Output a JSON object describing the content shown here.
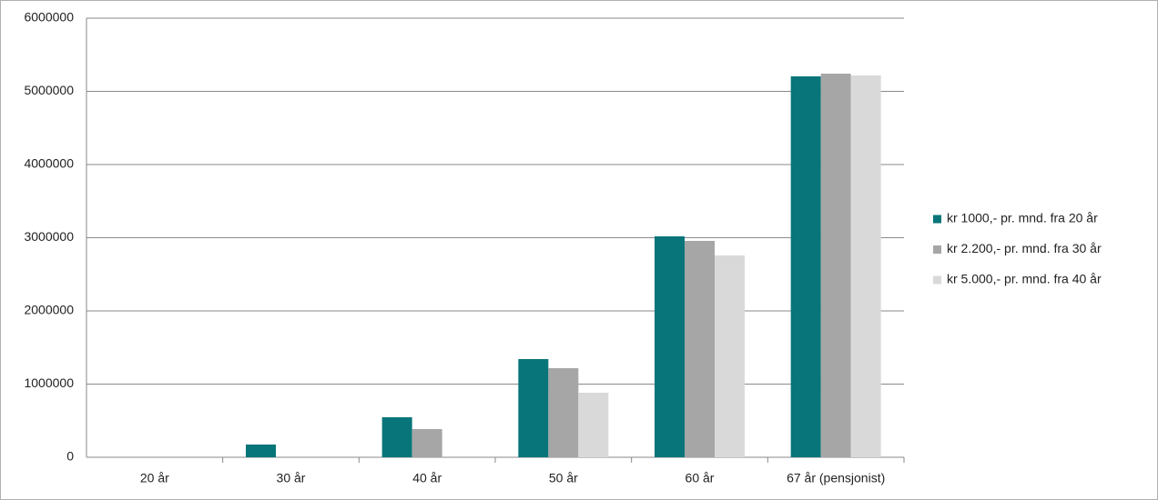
{
  "chart_data": {
    "type": "bar",
    "categories": [
      "20 år",
      "30 år",
      "40 år",
      "50 år",
      "60 år",
      "67 år (pensjonist)"
    ],
    "series": [
      {
        "name": "kr 1000,- pr. mnd. fra 20 år",
        "color": "#077579",
        "values": [
          0,
          174000,
          547000,
          1342000,
          3019000,
          5205000
        ]
      },
      {
        "name": "kr 2.200,- pr. mnd. fra 30 år",
        "color": "#a6a6a6",
        "values": [
          0,
          0,
          385000,
          1217000,
          2957000,
          5242000
        ]
      },
      {
        "name": "kr 5.000,- pr. mnd. fra 40 år",
        "color": "#d9d9d9",
        "values": [
          0,
          0,
          0,
          882000,
          2758000,
          5217000
        ]
      }
    ],
    "ylim": [
      0,
      6000000
    ],
    "yticks": [
      0,
      1000000,
      2000000,
      3000000,
      4000000,
      5000000,
      6000000
    ],
    "grid": true,
    "legend": "right"
  }
}
